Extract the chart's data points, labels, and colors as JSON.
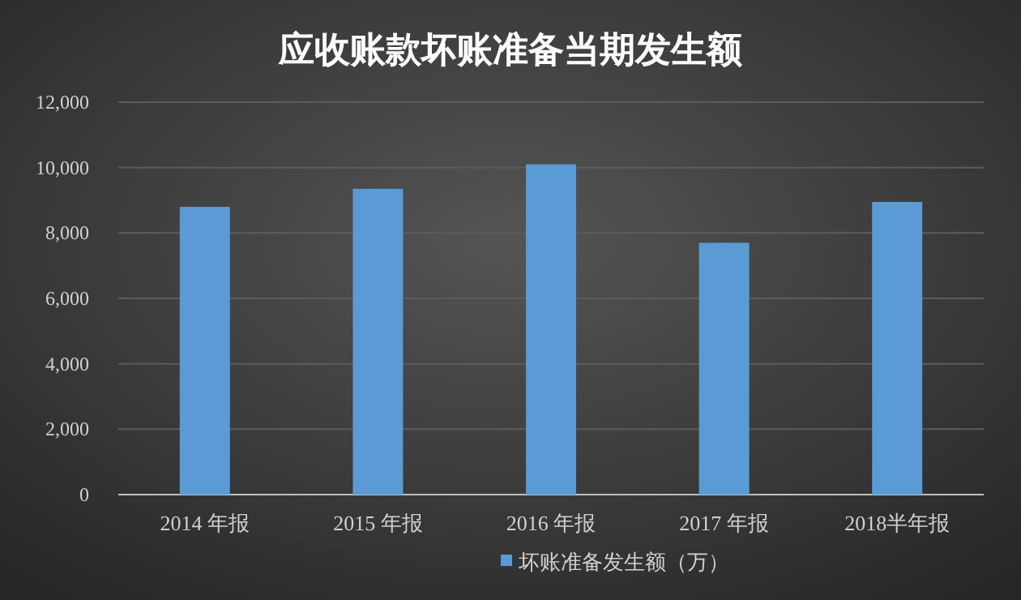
{
  "chart_data": {
    "type": "bar",
    "title": "应收账款坏账准备当期发生额",
    "categories": [
      "2014 年报",
      "2015 年报",
      "2016 年报",
      "2017 年报",
      "2018半年报"
    ],
    "series": [
      {
        "name": "坏账准备发生额（万）",
        "color": "#5b9bd5",
        "values": [
          8800,
          9350,
          10100,
          7700,
          8950
        ]
      }
    ],
    "ylim": [
      0,
      12000
    ],
    "yticks": [
      0,
      {
        "value": 2000,
        "label": "2,000"
      },
      {
        "value": 4000,
        "label": "4,000"
      },
      {
        "value": 6000,
        "label": "6,000"
      },
      {
        "value": 8000,
        "label": "8,000"
      },
      {
        "value": 10000,
        "label": "10,000"
      },
      {
        "value": 12000,
        "label": "12,000"
      }
    ],
    "grid": "y",
    "legend": "bottom"
  }
}
